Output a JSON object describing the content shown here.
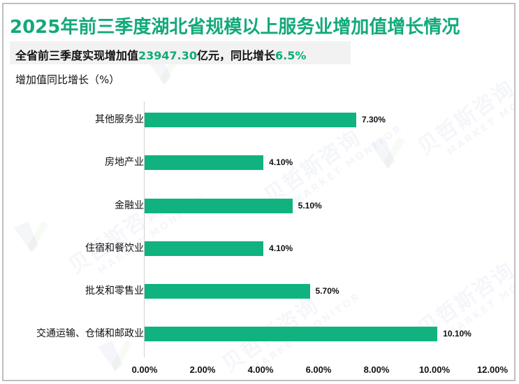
{
  "title": {
    "main": "2025年前三季度湖北省规模以上服务业增加值增长情况"
  },
  "subtitle": {
    "prefix": "全省前三季度实现增加值",
    "value": "23947.30",
    "middle": "亿元，同比增长",
    "growth": "6.5%"
  },
  "unit_label": "增加值同比增长（%）",
  "watermark": {
    "cn": "贝哲斯咨询",
    "en": "MARKET MONITOR"
  },
  "colors": {
    "accent": "#10b37f",
    "title": "#13a97a",
    "bar": "#10b37f",
    "subtitle_bg": "#f2f2f2",
    "border": "#bfbfbf"
  },
  "chart_data": {
    "type": "bar",
    "orientation": "horizontal",
    "title": "2025年前三季度湖北省规模以上服务业增加值增长情况",
    "subtitle": "全省前三季度实现增加值23947.30亿元，同比增长6.5%",
    "ylabel": "增加值同比增长（%）",
    "xlabel": "",
    "categories": [
      "其他服务业",
      "房地产业",
      "金融业",
      "住宿和餐饮业",
      "批发和零售业",
      "交通运输、仓储和邮政业"
    ],
    "values": [
      7.3,
      4.1,
      5.1,
      4.1,
      5.7,
      10.1
    ],
    "value_labels": [
      "7.30%",
      "4.10%",
      "5.10%",
      "4.10%",
      "5.70%",
      "10.10%"
    ],
    "xlim": [
      0,
      12
    ],
    "x_ticks": [
      "0.00%",
      "2.00%",
      "4.00%",
      "6.00%",
      "8.00%",
      "10.00%",
      "12.00%"
    ],
    "grid": false,
    "legend": "none",
    "bar_color": "#10b37f"
  }
}
